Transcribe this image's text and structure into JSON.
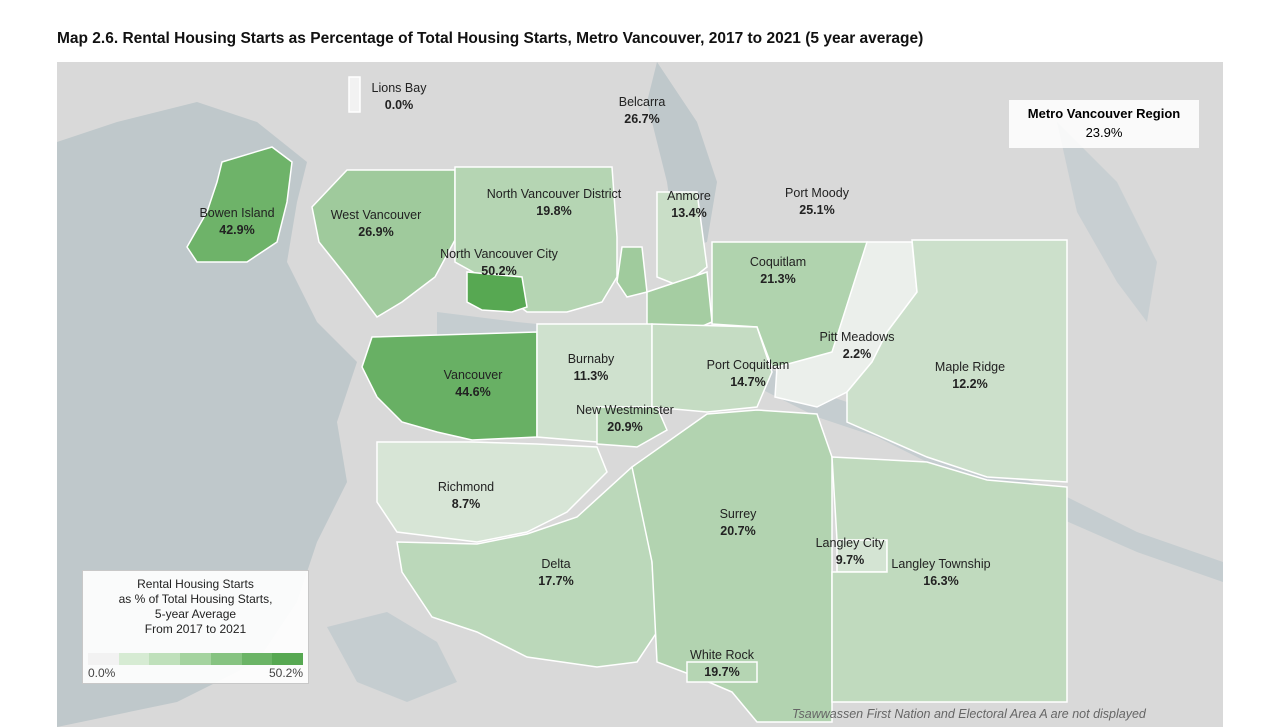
{
  "title": "Map 2.6. Rental Housing Starts as Percentage of Total Housing Starts, Metro Vancouver, 2017 to 2021 (5 year average)",
  "region_total": {
    "name": "Metro Vancouver Region",
    "value": "23.9%"
  },
  "municipalities": [
    {
      "id": "lions-bay",
      "name": "Lions Bay",
      "value": "0.0%",
      "pct": 0.0
    },
    {
      "id": "belcarra",
      "name": "Belcarra",
      "value": "26.7%",
      "pct": 26.7
    },
    {
      "id": "bowen-island",
      "name": "Bowen Island",
      "value": "42.9%",
      "pct": 42.9
    },
    {
      "id": "west-vancouver",
      "name": "West Vancouver",
      "value": "26.9%",
      "pct": 26.9
    },
    {
      "id": "north-vancouver-district",
      "name": "North Vancouver District",
      "value": "19.8%",
      "pct": 19.8
    },
    {
      "id": "anmore",
      "name": "Anmore",
      "value": "13.4%",
      "pct": 13.4
    },
    {
      "id": "port-moody",
      "name": "Port Moody",
      "value": "25.1%",
      "pct": 25.1
    },
    {
      "id": "north-vancouver-city",
      "name": "North Vancouver City",
      "value": "50.2%",
      "pct": 50.2
    },
    {
      "id": "coquitlam",
      "name": "Coquitlam",
      "value": "21.3%",
      "pct": 21.3
    },
    {
      "id": "pitt-meadows",
      "name": "Pitt Meadows",
      "value": "2.2%",
      "pct": 2.2
    },
    {
      "id": "burnaby",
      "name": "Burnaby",
      "value": "11.3%",
      "pct": 11.3
    },
    {
      "id": "vancouver",
      "name": "Vancouver",
      "value": "44.6%",
      "pct": 44.6
    },
    {
      "id": "port-coquitlam",
      "name": "Port Coquitlam",
      "value": "14.7%",
      "pct": 14.7
    },
    {
      "id": "maple-ridge",
      "name": "Maple Ridge",
      "value": "12.2%",
      "pct": 12.2
    },
    {
      "id": "new-westminster",
      "name": "New Westminster",
      "value": "20.9%",
      "pct": 20.9
    },
    {
      "id": "richmond",
      "name": "Richmond",
      "value": "8.7%",
      "pct": 8.7
    },
    {
      "id": "surrey",
      "name": "Surrey",
      "value": "20.7%",
      "pct": 20.7
    },
    {
      "id": "langley-city",
      "name": "Langley City",
      "value": "9.7%",
      "pct": 9.7
    },
    {
      "id": "delta",
      "name": "Delta",
      "value": "17.7%",
      "pct": 17.7
    },
    {
      "id": "langley-township",
      "name": "Langley Township",
      "value": "16.3%",
      "pct": 16.3
    },
    {
      "id": "white-rock",
      "name": "White Rock",
      "value": "19.7%",
      "pct": 19.7
    }
  ],
  "legend": {
    "title_lines": [
      "Rental Housing Starts",
      "as % of Total Housing Starts,",
      "5-year Average",
      "From 2017 to 2021"
    ],
    "min_label": "0.0%",
    "max_label": "50.2%",
    "min": 0.0,
    "max": 50.2,
    "ramp_colors": [
      "#f2f2f2",
      "#d6ebd3",
      "#bfe0bb",
      "#a4d39f",
      "#86c381",
      "#6bb466",
      "#57a852"
    ]
  },
  "footnote": "Tsawwassen First Nation and Electoral Area A are not displayed",
  "colors": {
    "water": "#bfc8cb",
    "land": "#d9d9d9",
    "low": "#f2f2f2",
    "high": "#57a852"
  }
}
